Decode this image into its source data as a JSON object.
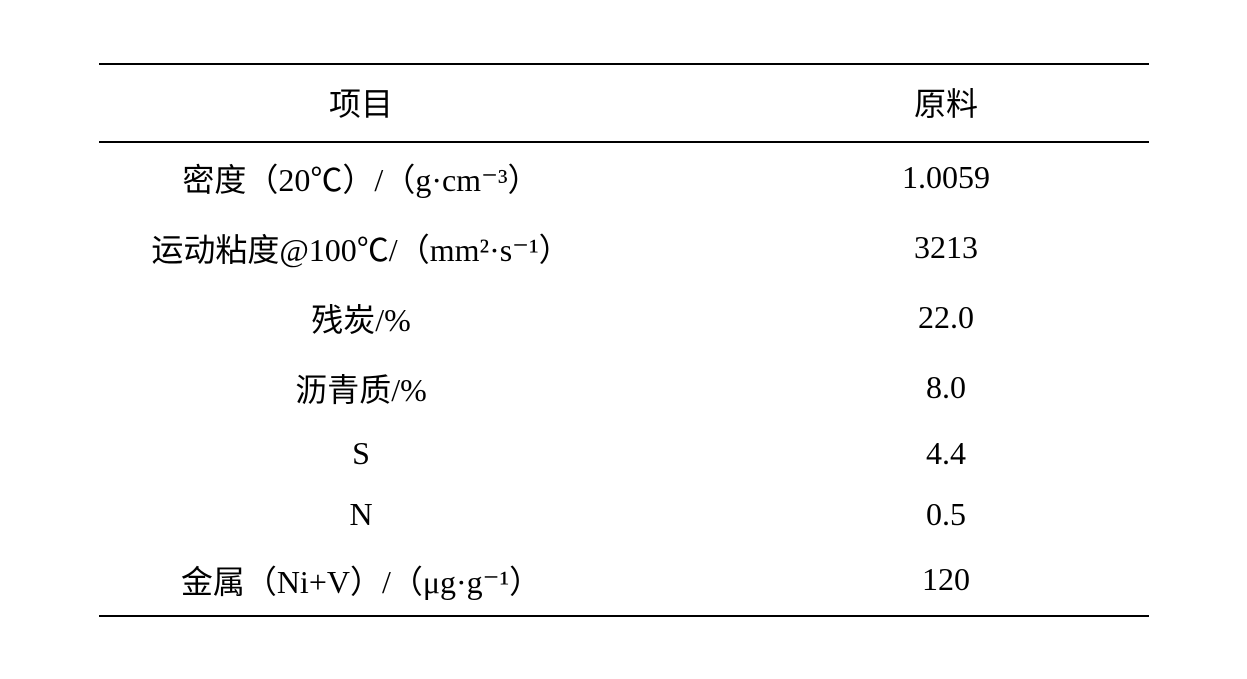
{
  "table": {
    "columns": [
      {
        "header": "项目"
      },
      {
        "header": "原料"
      }
    ],
    "rows": [
      {
        "property": "密度（20℃）/（g·cm⁻³）",
        "value": "1.0059"
      },
      {
        "property": "运动粘度@100℃/（mm²·s⁻¹）",
        "value": "3213"
      },
      {
        "property": "残炭/%",
        "value": "22.0"
      },
      {
        "property": "沥青质/%",
        "value": "8.0"
      },
      {
        "property": "S",
        "value": "4.4"
      },
      {
        "property": "N",
        "value": "0.5"
      },
      {
        "property": "金属（Ni+V）/（μg·g⁻¹）",
        "value": "120"
      }
    ],
    "border_color": "#000000",
    "background_color": "#ffffff",
    "text_color": "#000000",
    "header_fontsize": 32,
    "cell_fontsize": 32,
    "border_top_width": "2.5px",
    "border_header_width": "2px",
    "border_bottom_width": "2.5px"
  }
}
